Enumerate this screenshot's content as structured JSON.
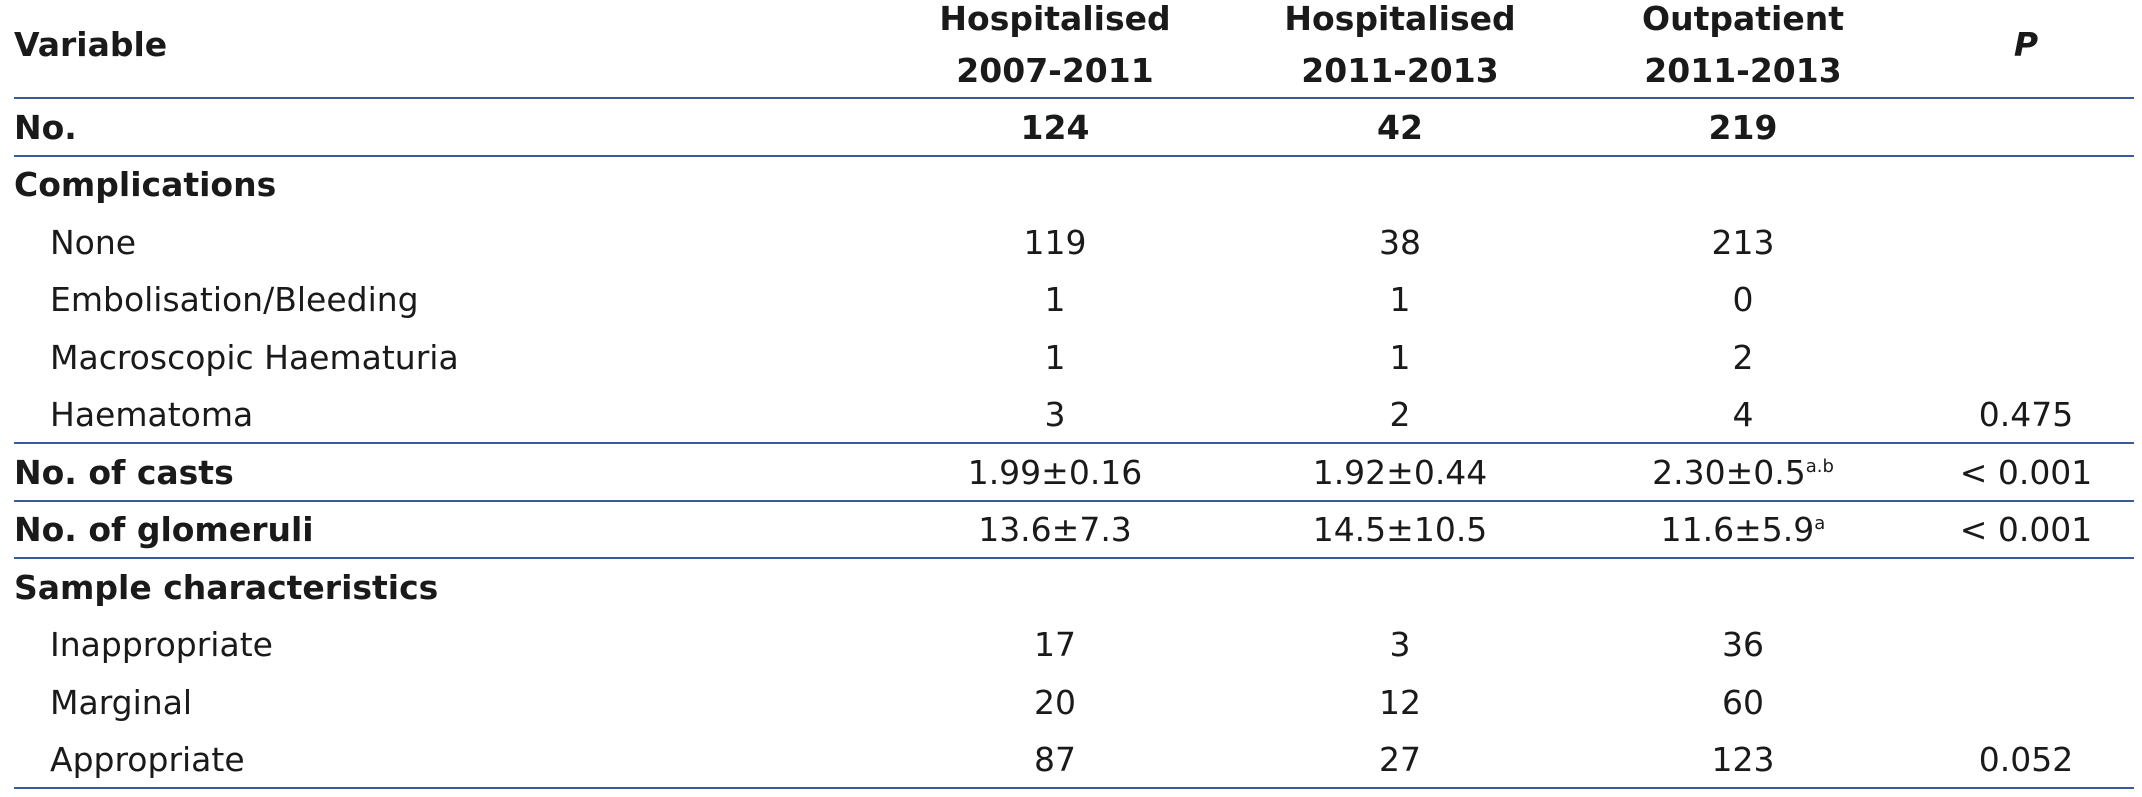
{
  "header": {
    "columns": [
      [
        "Variable"
      ],
      [
        "Hospitalised",
        "2007-2011"
      ],
      [
        "Hospitalised",
        "2011-2013"
      ],
      [
        "Outpatient",
        "2011-2013"
      ],
      [
        "P"
      ]
    ]
  },
  "rows": [
    {
      "kind": "summary",
      "cells": [
        "No.",
        "124",
        "42",
        "219",
        null
      ]
    },
    {
      "kind": "group",
      "cells": [
        "Complications",
        null,
        null,
        null,
        null
      ]
    },
    {
      "kind": "item",
      "cells": [
        "None",
        "119",
        "38",
        "213",
        null
      ]
    },
    {
      "kind": "item",
      "cells": [
        "Embolisation/Bleeding",
        "1",
        "1",
        "0",
        null
      ]
    },
    {
      "kind": "item",
      "cells": [
        "Macroscopic Haematuria",
        "1",
        "1",
        "2",
        null
      ]
    },
    {
      "kind": "item",
      "cells": [
        "Haematoma",
        "3",
        "2",
        "4",
        "0.475"
      ]
    },
    {
      "kind": "group",
      "cells": [
        "No. of casts",
        "1.99±0.16",
        "1.92±0.44",
        {
          "text": "2.30±0.5",
          "sup": "a.b"
        },
        "< 0.001"
      ]
    },
    {
      "kind": "group",
      "cells": [
        "No. of glomeruli",
        "13.6±7.3",
        "14.5±10.5",
        {
          "text": "11.6±5.9",
          "sup": "a"
        },
        "< 0.001"
      ]
    },
    {
      "kind": "group",
      "cells": [
        "Sample characteristics",
        null,
        null,
        null,
        null
      ]
    },
    {
      "kind": "item",
      "cells": [
        "Inappropriate",
        "17",
        "3",
        "36",
        null
      ]
    },
    {
      "kind": "item",
      "cells": [
        "Marginal",
        "20",
        "12",
        "60",
        null
      ]
    },
    {
      "kind": "item",
      "cells": [
        "Appropriate",
        "87",
        "27",
        "123",
        "0.052"
      ]
    }
  ]
}
